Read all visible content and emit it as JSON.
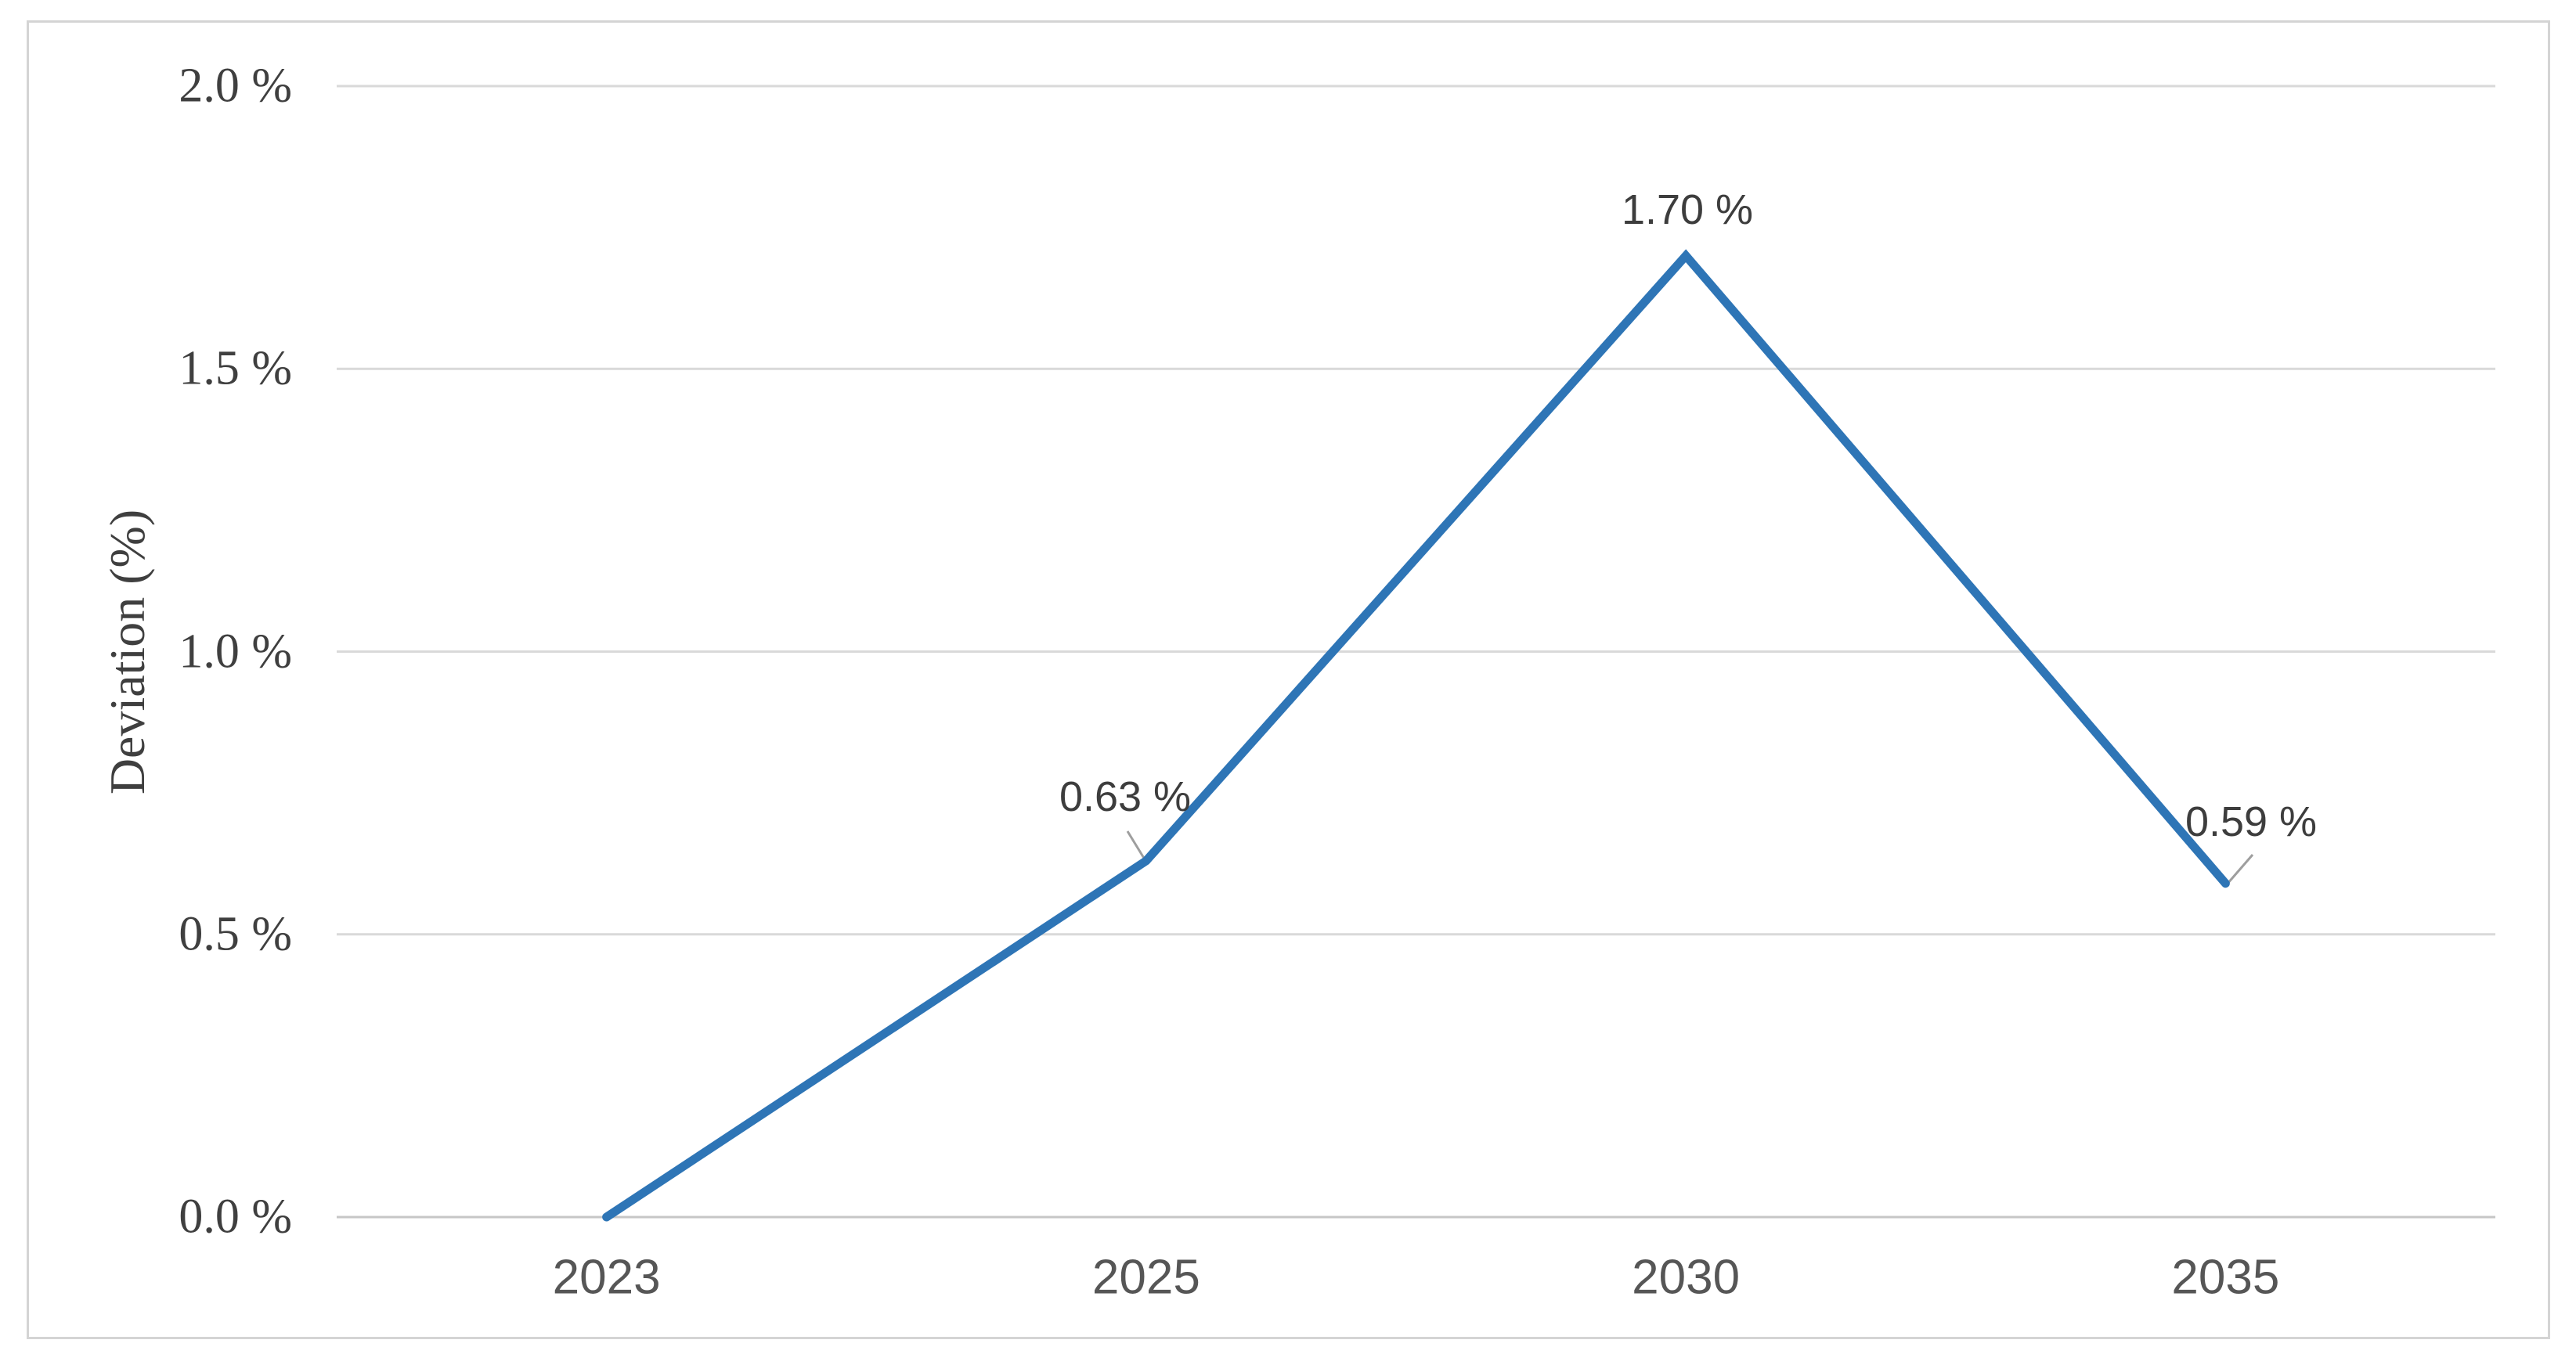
{
  "chart_data": {
    "type": "line",
    "categories": [
      "2023",
      "2025",
      "2030",
      "2035"
    ],
    "values": [
      0.0,
      0.63,
      1.7,
      0.59
    ],
    "data_labels": [
      "",
      "0.63 %",
      "1.70 %",
      "0.59 %"
    ],
    "title": "",
    "xlabel": "",
    "ylabel": "Deviation (%)",
    "ylim": [
      0,
      2.0
    ],
    "ytick_step": 0.5,
    "ytick_labels": [
      "0.0 %",
      "0.5 %",
      "1.0 %",
      "1.5 %",
      "2.0 %"
    ],
    "grid": "horizontal-only",
    "legend": "none",
    "series_name": "Deviation"
  },
  "colors": {
    "line": "#2e75b6",
    "gridline": "#d9d9d9",
    "axis_line": "#c6c6c6",
    "leader_line": "#9e9e9e"
  }
}
